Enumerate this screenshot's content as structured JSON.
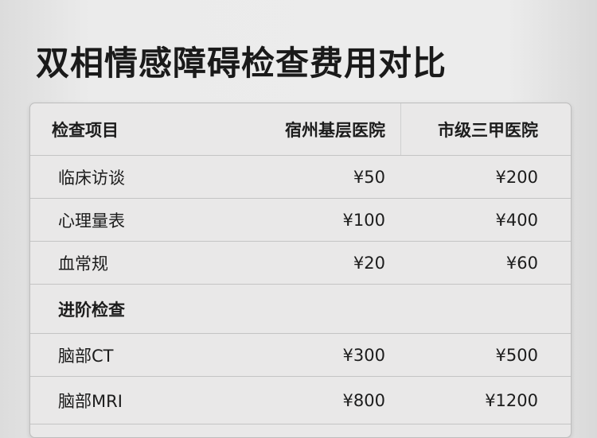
{
  "title": "双相情感障碍检查费用对比",
  "table": {
    "headers": [
      "检查项目",
      "宿州基层医院",
      "市级三甲医院"
    ],
    "rows": [
      {
        "type": "item",
        "name": "临床访谈",
        "local": "¥50",
        "city": "¥200"
      },
      {
        "type": "item",
        "name": "心理量表",
        "local": "¥100",
        "city": "¥400"
      },
      {
        "type": "item",
        "name": "血常规",
        "local": "¥20",
        "city": "¥60"
      },
      {
        "type": "section",
        "name": "进阶检查",
        "local": "",
        "city": ""
      },
      {
        "type": "item",
        "name": "脑部CT",
        "local": "¥300",
        "city": "¥500"
      },
      {
        "type": "item",
        "name": "脑部MRI",
        "local": "¥800",
        "city": "¥1200"
      }
    ]
  }
}
